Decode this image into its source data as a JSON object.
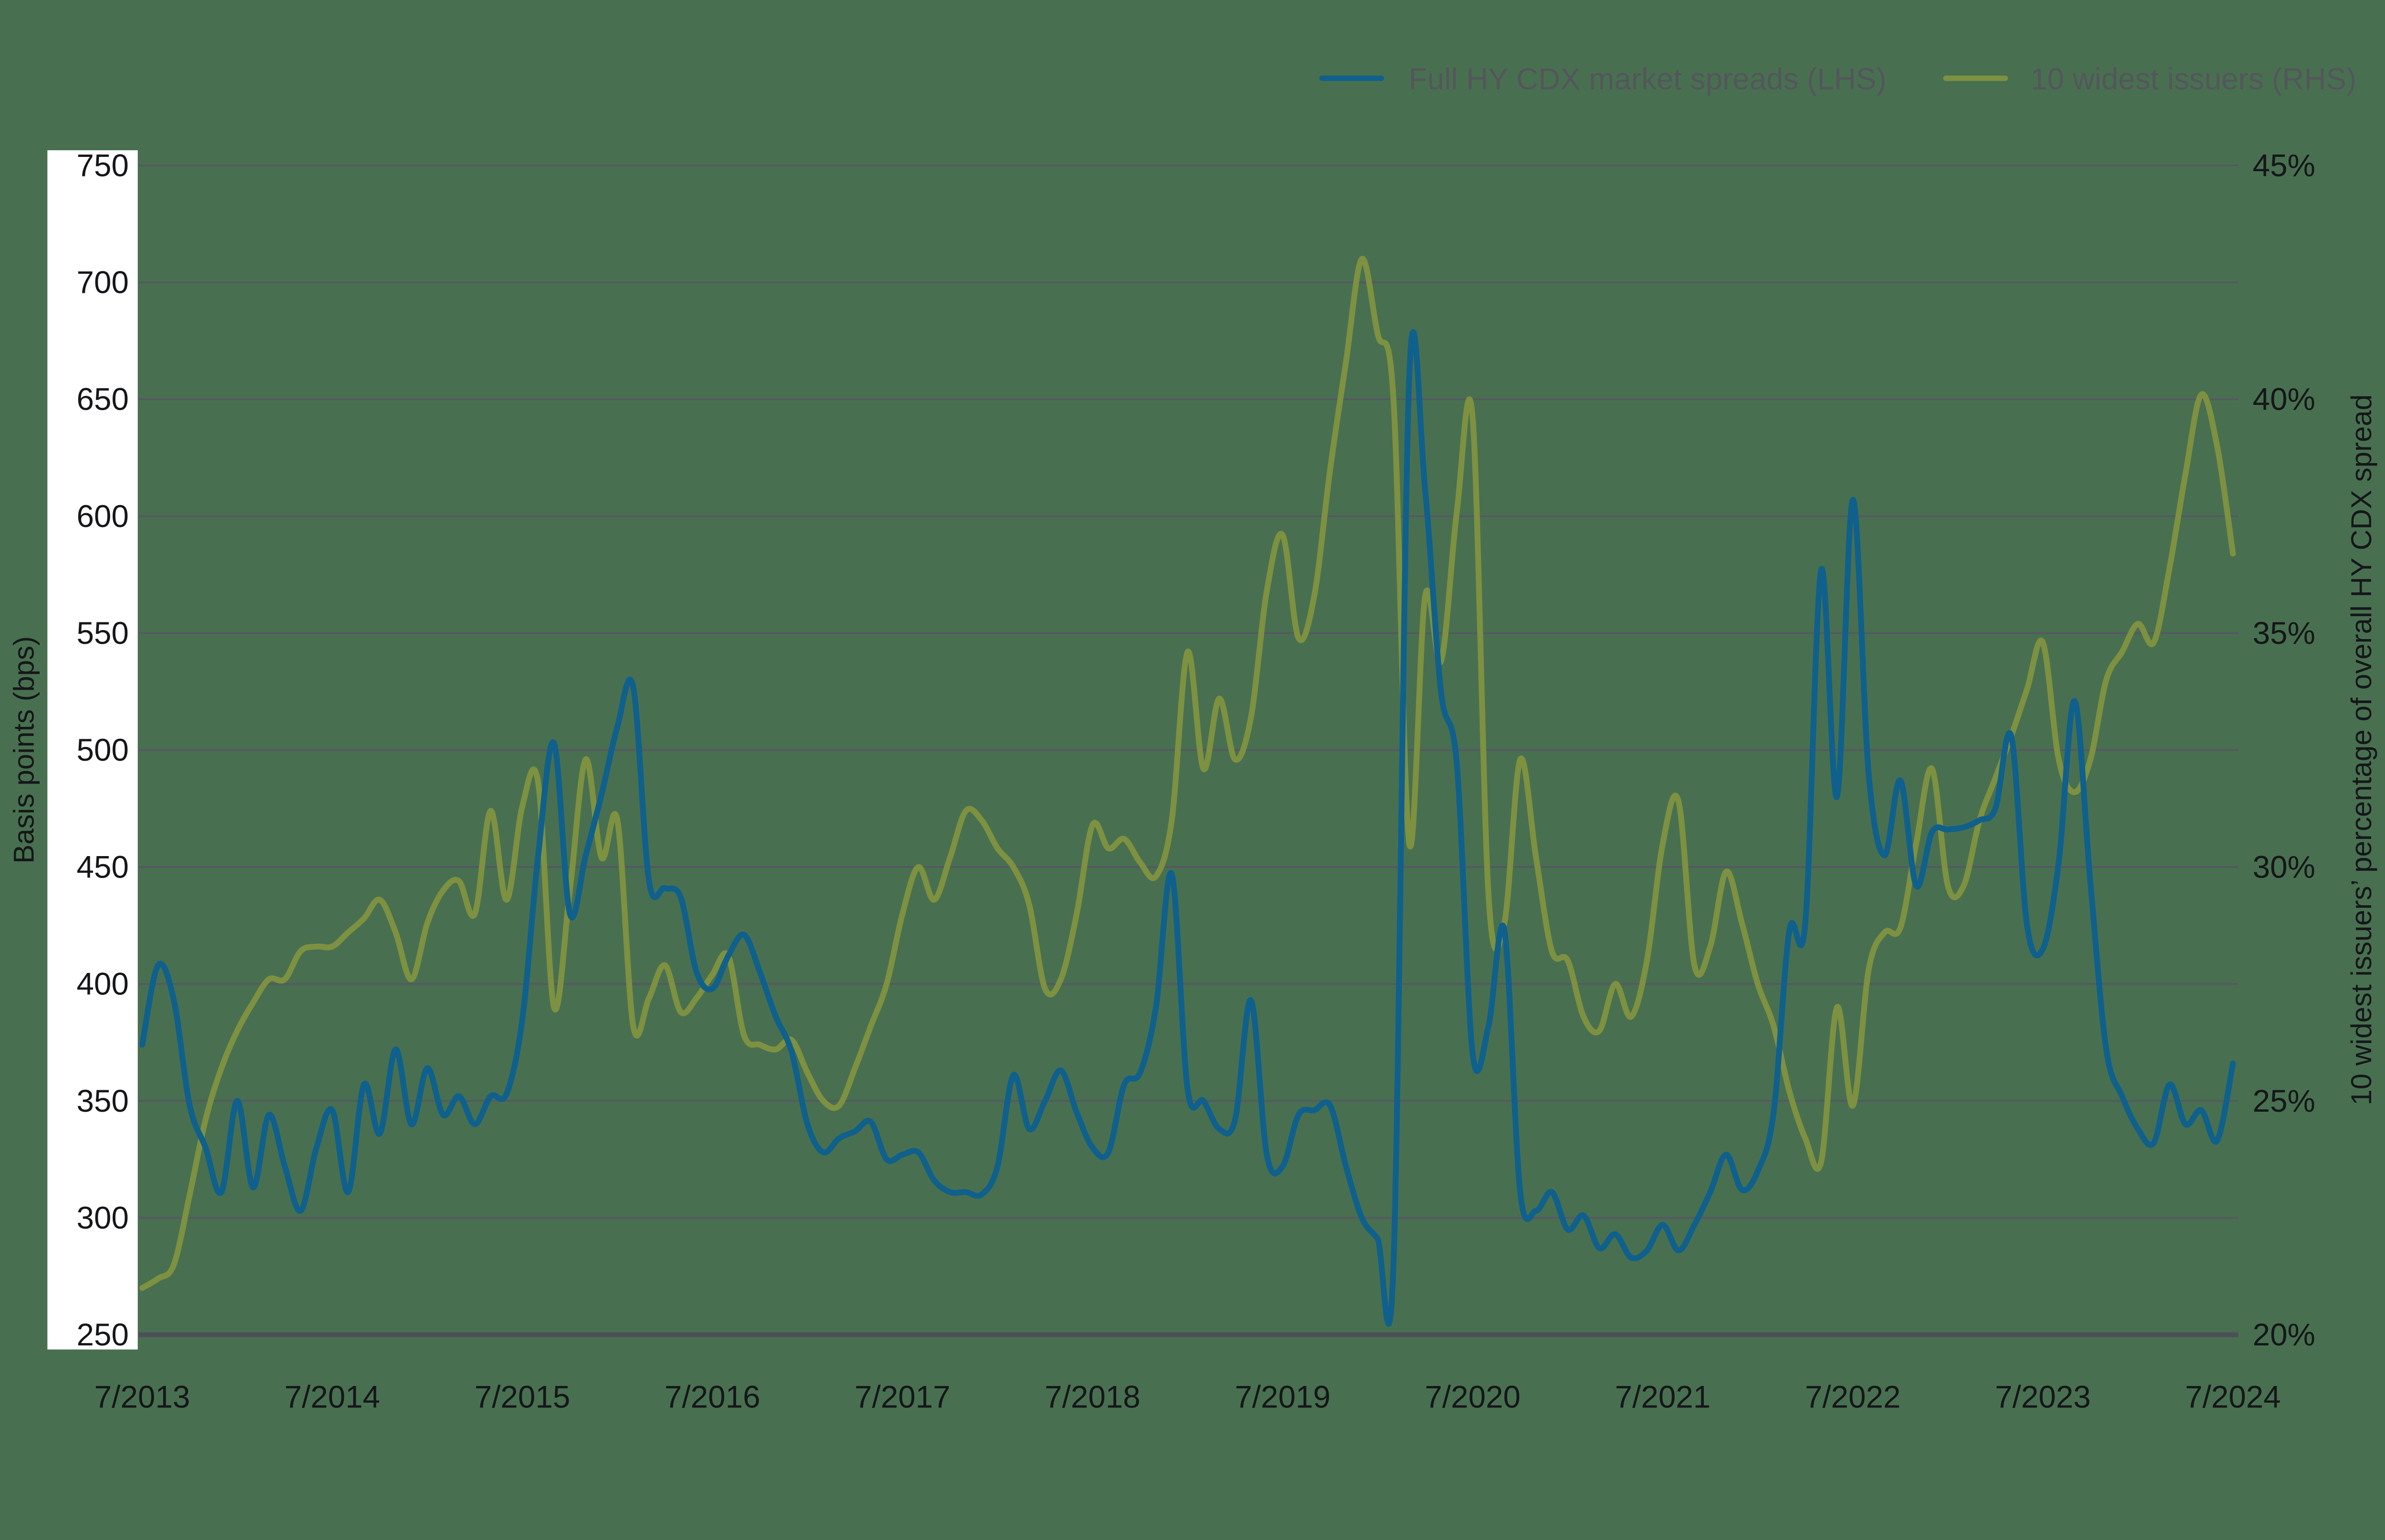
{
  "chart_data": {
    "type": "line",
    "title": "",
    "x": {
      "start_label": "7/2013",
      "end_label": "7/2024",
      "frequency": "monthly",
      "points": 133
    },
    "x_tick_labels": [
      "7/2013",
      "7/2014",
      "7/2015",
      "7/2016",
      "7/2017",
      "7/2018",
      "7/2019",
      "7/2020",
      "7/2021",
      "7/2022",
      "7/2023",
      "7/2024"
    ],
    "left_axis": {
      "label": "Basis points (bps)",
      "min": 250,
      "max": 750,
      "tick_interval": 50,
      "tick_labels": [
        "250",
        "300",
        "350",
        "400",
        "450",
        "500",
        "550",
        "600",
        "650",
        "700",
        "750"
      ]
    },
    "right_axis": {
      "label": "10 widest issuers’ percentage of overall HY CDX spread",
      "min": 20,
      "max": 45,
      "tick_interval": 5,
      "tick_labels": [
        "20%",
        "25%",
        "30%",
        "35%",
        "40%",
        "45%"
      ]
    },
    "grid": true,
    "legend_position": "top-right",
    "series": [
      {
        "name": "Full HY CDX market spreads (LHS)",
        "axis": "left",
        "unit": "bps",
        "color": "#0f608c",
        "values": [
          374,
          408,
          393,
          348,
          330,
          311,
          350,
          313,
          344,
          322,
          303,
          330,
          346,
          311,
          357,
          336,
          372,
          340,
          364,
          344,
          352,
          340,
          352,
          353,
          385,
          455,
          503,
          430,
          455,
          481,
          510,
          527,
          444,
          441,
          437,
          405,
          398,
          412,
          421,
          405,
          386,
          371,
          340,
          328,
          334,
          337,
          341,
          325,
          327,
          328,
          316,
          311,
          311,
          310,
          322,
          361,
          338,
          350,
          363,
          345,
          330,
          328,
          357,
          362,
          390,
          447,
          355,
          350,
          338,
          342,
          393,
          327,
          322,
          344,
          346,
          348,
          322,
          300,
          291,
          280,
          660,
          611,
          525,
          494,
          370,
          382,
          423,
          311,
          303,
          311,
          295,
          301,
          287,
          293,
          283,
          286,
          297,
          286,
          297,
          311,
          327,
          312,
          320,
          345,
          423,
          426,
          577,
          480,
          607,
          490,
          455,
          487,
          442,
          465,
          466,
          467,
          470,
          475,
          506,
          425,
          415,
          452,
          521,
          443,
          372,
          352,
          338,
          332,
          357,
          340,
          346,
          333,
          366
        ]
      },
      {
        "name": "10 widest issuers (RHS)",
        "axis": "right",
        "unit": "%",
        "color": "#7d9141",
        "values": [
          21.0,
          21.2,
          21.5,
          23.0,
          24.6,
          25.7,
          26.5,
          27.1,
          27.6,
          27.6,
          28.2,
          28.3,
          28.3,
          28.6,
          28.9,
          29.3,
          28.6,
          27.6,
          28.8,
          29.5,
          29.7,
          29.0,
          31.2,
          29.3,
          31.3,
          31.8,
          27.0,
          29.5,
          32.3,
          30.2,
          31.0,
          26.6,
          27.2,
          27.9,
          26.9,
          27.2,
          27.7,
          28.1,
          26.4,
          26.2,
          26.1,
          26.3,
          25.6,
          25.0,
          24.9,
          25.7,
          26.6,
          27.5,
          29.0,
          30.0,
          29.3,
          30.2,
          31.2,
          31.0,
          30.4,
          30.0,
          29.2,
          27.4,
          27.6,
          29.0,
          30.9,
          30.4,
          30.6,
          30.1,
          29.8,
          31.0,
          34.6,
          32.1,
          33.6,
          32.3,
          33.2,
          35.9,
          37.1,
          34.9,
          35.8,
          38.5,
          40.8,
          43.0,
          41.4,
          40.0,
          30.5,
          35.8,
          34.4,
          37.6,
          39.6,
          29.4,
          28.8,
          32.3,
          30.2,
          28.2,
          28.0,
          26.8,
          26.5,
          27.5,
          26.8,
          28.0,
          30.5,
          31.4,
          27.9,
          28.3,
          29.9,
          28.8,
          27.5,
          26.6,
          25.2,
          24.2,
          23.7,
          27.0,
          24.9,
          27.8,
          28.6,
          28.7,
          30.5,
          32.1,
          29.6,
          29.6,
          31.0,
          31.9,
          32.8,
          33.8,
          34.8,
          32.3,
          31.6,
          32.3,
          34.0,
          34.6,
          35.2,
          34.8,
          36.4,
          38.4,
          40.1,
          39.0,
          36.7
        ]
      }
    ]
  },
  "colors": {
    "background": "#487050",
    "gridline": "#565862",
    "axis_line": "#4c4f58",
    "tick_text": "#15161a",
    "legend_text": "#54565c",
    "label_backdrop": "#ffffff",
    "series_blue": "#0f608c",
    "series_olive": "#7d9141"
  }
}
